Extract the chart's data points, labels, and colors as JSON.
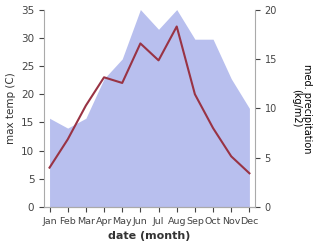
{
  "months": [
    "Jan",
    "Feb",
    "Mar",
    "Apr",
    "May",
    "Jun",
    "Jul",
    "Aug",
    "Sep",
    "Oct",
    "Nov",
    "Dec"
  ],
  "month_indices": [
    0,
    1,
    2,
    3,
    4,
    5,
    6,
    7,
    8,
    9,
    10,
    11
  ],
  "temperature": [
    7,
    12,
    18,
    23,
    22,
    29,
    26,
    32,
    20,
    14,
    9,
    6
  ],
  "precipitation": [
    9,
    8,
    9,
    13,
    15,
    20,
    18,
    20,
    17,
    17,
    13,
    10
  ],
  "temp_color": "#993344",
  "precip_color": "#b8bfee",
  "left_ylim": [
    0,
    35
  ],
  "right_ylim": [
    0,
    20
  ],
  "left_yticks": [
    0,
    5,
    10,
    15,
    20,
    25,
    30,
    35
  ],
  "right_yticks": [
    0,
    5,
    10,
    15,
    20
  ],
  "xlabel": "date (month)",
  "ylabel_left": "max temp (C)",
  "ylabel_right": "med. precipitation\n(kg/m2)",
  "figsize": [
    3.18,
    2.47
  ],
  "dpi": 100
}
